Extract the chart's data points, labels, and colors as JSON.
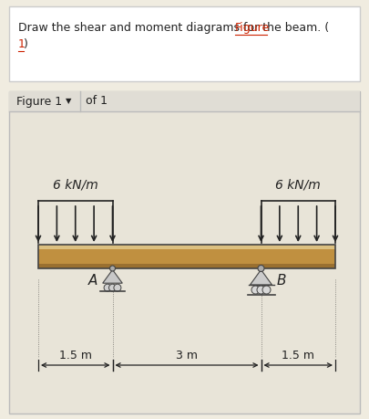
{
  "bg_color": "#f0ece0",
  "top_box_color": "#ffffff",
  "top_box_edge": "#cccccc",
  "panel_bg": "#e8e4d8",
  "panel_edge": "#bbbbbb",
  "header_bg": "#e0ddd5",
  "beam_top_color": "#d4b878",
  "beam_mid_color": "#c09040",
  "beam_bot_color": "#9a7030",
  "beam_edge": "#444444",
  "text_color": "#222222",
  "link_color": "#cc2200",
  "arrow_color": "#222222",
  "support_fill": "#c0c0c0",
  "support_edge": "#444444",
  "dim_color": "#222222",
  "label_A": "A",
  "label_B": "B",
  "load_left_label": "6 kN/m",
  "load_right_label": "6 kN/m",
  "dim_left": "1.5 m",
  "dim_mid": "3 m",
  "dim_right": "1.5 m",
  "question_line1": "Draw the shear and moment diagrams for the beam. (",
  "question_link": "Figure",
  "question_line2_pre": "1)",
  "question_line2_link": "1",
  "figure_label": "Figure 1",
  "of_label": "of 1"
}
